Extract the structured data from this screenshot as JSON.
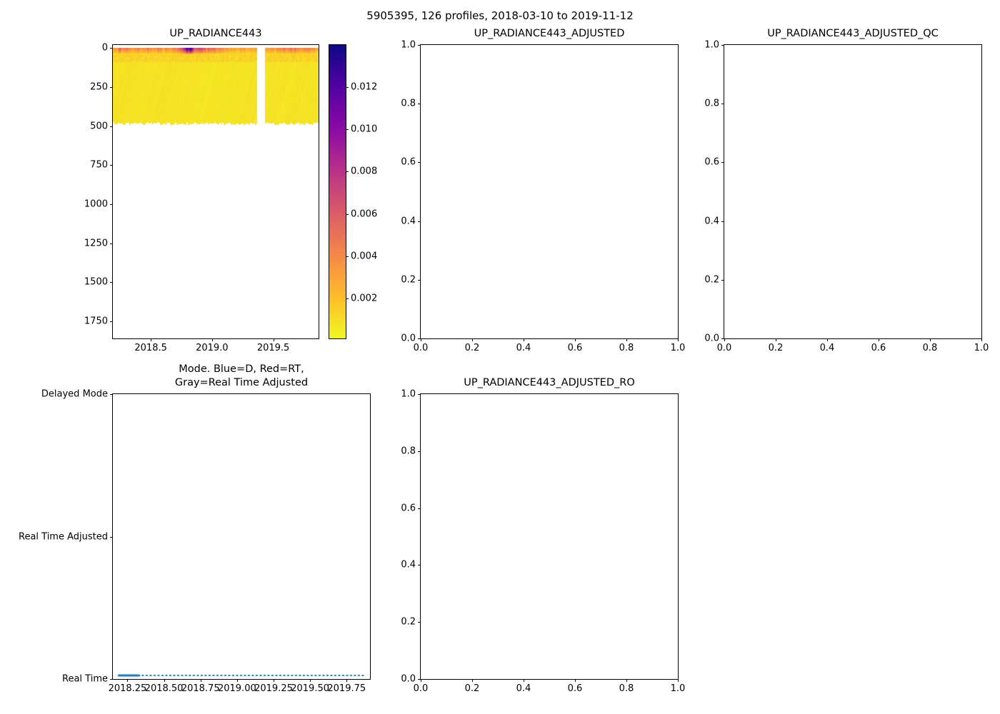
{
  "suptitle": "5905395, 126 profiles, 2018-03-10 to 2019-11-12",
  "chart_data": [
    {
      "id": "up_radiance443",
      "type": "heatmap",
      "title": "UP_RADIANCE443",
      "xlabel": "",
      "ylabel": "",
      "xlim": [
        2018.19,
        2019.87
      ],
      "ylim": [
        -20,
        1860
      ],
      "y_inverted": true,
      "xtick_values": [
        2018.5,
        2019.0,
        2019.5
      ],
      "xtick_labels": [
        "2018.5",
        "2019.0",
        "2019.5"
      ],
      "ytick_values": [
        0,
        250,
        500,
        750,
        1000,
        1250,
        1500,
        1750
      ],
      "ytick_labels": [
        "0",
        "250",
        "500",
        "750",
        "1000",
        "1250",
        "1500",
        "1750"
      ],
      "colormap": "plasma_reversed",
      "vmin": 0.0001,
      "vmax": 0.014,
      "colorbar_tick_values": [
        0.002,
        0.004,
        0.006,
        0.008,
        0.01,
        0.012
      ],
      "colorbar_tick_labels": [
        "0.002",
        "0.004",
        "0.006",
        "0.008",
        "0.010",
        "0.012"
      ],
      "data": {
        "x_start": 2018.19,
        "x_end": 2019.87,
        "n_profiles": 126,
        "depth_extent": 485,
        "gap_x": [
          2019.37,
          2019.43
        ],
        "deep_value": 0.0008,
        "surface_band_depth": 40,
        "surface_profile": [
          [
            2018.19,
            0.005
          ],
          [
            2018.22,
            0.0035
          ],
          [
            2018.25,
            0.006
          ],
          [
            2018.28,
            0.004
          ],
          [
            2018.31,
            0.0055
          ],
          [
            2018.34,
            0.003
          ],
          [
            2018.37,
            0.0045
          ],
          [
            2018.4,
            0.004
          ],
          [
            2018.44,
            0.0035
          ],
          [
            2018.48,
            0.005
          ],
          [
            2018.52,
            0.004
          ],
          [
            2018.56,
            0.0045
          ],
          [
            2018.6,
            0.0035
          ],
          [
            2018.64,
            0.004
          ],
          [
            2018.68,
            0.0045
          ],
          [
            2018.72,
            0.005
          ],
          [
            2018.75,
            0.007
          ],
          [
            2018.78,
            0.009
          ],
          [
            2018.8,
            0.013
          ],
          [
            2018.82,
            0.0135
          ],
          [
            2018.84,
            0.012
          ],
          [
            2018.86,
            0.008
          ],
          [
            2018.88,
            0.006
          ],
          [
            2018.92,
            0.0065
          ],
          [
            2018.96,
            0.006
          ],
          [
            2019.0,
            0.0055
          ],
          [
            2019.05,
            0.005
          ],
          [
            2019.1,
            0.004
          ],
          [
            2019.15,
            0.0035
          ],
          [
            2019.2,
            0.003
          ],
          [
            2019.25,
            0.0035
          ],
          [
            2019.3,
            0.003
          ],
          [
            2019.35,
            0.0035
          ],
          [
            2019.45,
            0.003
          ],
          [
            2019.5,
            0.0035
          ],
          [
            2019.55,
            0.004
          ],
          [
            2019.6,
            0.005
          ],
          [
            2019.65,
            0.0055
          ],
          [
            2019.7,
            0.005
          ],
          [
            2019.75,
            0.0045
          ],
          [
            2019.8,
            0.004
          ],
          [
            2019.85,
            0.0035
          ]
        ]
      }
    },
    {
      "id": "up_radiance443_adjusted",
      "type": "empty",
      "title": "UP_RADIANCE443_ADJUSTED",
      "xlim": [
        0,
        1
      ],
      "ylim": [
        0,
        1
      ],
      "y_inverted": false,
      "xtick_values": [
        0.0,
        0.2,
        0.4,
        0.6,
        0.8,
        1.0
      ],
      "xtick_labels": [
        "0.0",
        "0.2",
        "0.4",
        "0.6",
        "0.8",
        "1.0"
      ],
      "ytick_values": [
        0.0,
        0.2,
        0.4,
        0.6,
        0.8,
        1.0
      ],
      "ytick_labels": [
        "0.0",
        "0.2",
        "0.4",
        "0.6",
        "0.8",
        "1.0"
      ]
    },
    {
      "id": "up_radiance443_adjusted_qc",
      "type": "empty",
      "title": "UP_RADIANCE443_ADJUSTED_QC",
      "xlim": [
        0,
        1
      ],
      "ylim": [
        0,
        1
      ],
      "y_inverted": false,
      "xtick_values": [
        0.0,
        0.2,
        0.4,
        0.6,
        0.8,
        1.0
      ],
      "xtick_labels": [
        "0.0",
        "0.2",
        "0.4",
        "0.6",
        "0.8",
        "1.0"
      ],
      "ytick_values": [
        0.0,
        0.2,
        0.4,
        0.6,
        0.8,
        1.0
      ],
      "ytick_labels": [
        "0.0",
        "0.2",
        "0.4",
        "0.6",
        "0.8",
        "1.0"
      ]
    },
    {
      "id": "mode",
      "type": "line",
      "title": "Mode. Blue=D, Red=RT,\nGray=Real Time Adjusted",
      "xlim": [
        2018.15,
        2019.91
      ],
      "ylim": [
        0,
        2
      ],
      "y_inverted": false,
      "xtick_values": [
        2018.25,
        2018.5,
        2018.75,
        2019.0,
        2019.25,
        2019.5,
        2019.75
      ],
      "xtick_labels": [
        "2018.25",
        "2018.50",
        "2018.75",
        "2019.00",
        "2019.25",
        "2019.50",
        "2019.75"
      ],
      "ytick_values": [
        0,
        1,
        2
      ],
      "ytick_labels": [
        "Real Time",
        "Real Time Adjusted",
        "Delayed Mode"
      ],
      "legend_note": "Blue=D, Red=RT, Gray=Real Time Adjusted",
      "series": [
        {
          "name": "Mode",
          "color": "#1f77b4",
          "linestyle": "dotted",
          "y_category": "Real Time",
          "y_value": 0,
          "x_start": 2018.19,
          "x_end": 2019.87,
          "solid_segment_end": 2018.33
        }
      ]
    },
    {
      "id": "up_radiance443_adjusted_ro",
      "type": "empty",
      "title": "UP_RADIANCE443_ADJUSTED_RO",
      "xlim": [
        0,
        1
      ],
      "ylim": [
        0,
        1
      ],
      "y_inverted": false,
      "xtick_values": [
        0.0,
        0.2,
        0.4,
        0.6,
        0.8,
        1.0
      ],
      "xtick_labels": [
        "0.0",
        "0.2",
        "0.4",
        "0.6",
        "0.8",
        "1.0"
      ],
      "ytick_values": [
        0.0,
        0.2,
        0.4,
        0.6,
        0.8,
        1.0
      ],
      "ytick_labels": [
        "0.0",
        "0.2",
        "0.4",
        "0.6",
        "0.8",
        "1.0"
      ]
    }
  ]
}
